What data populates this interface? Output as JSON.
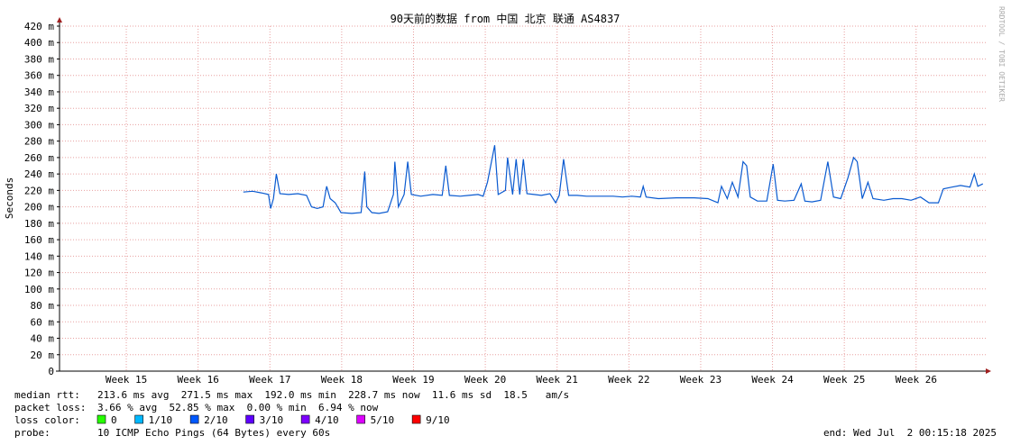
{
  "chart_data": {
    "type": "line",
    "title": "90天前的数据 from 中国 北京 联通 AS4837",
    "y_label": "Seconds",
    "watermark": "RRDTOOL / TOBI OETIKER",
    "xlim": [
      14.07,
      26.97
    ],
    "xticks": [
      {
        "value": 15,
        "label": "Week 15"
      },
      {
        "value": 16,
        "label": "Week 16"
      },
      {
        "value": 17,
        "label": "Week 17"
      },
      {
        "value": 18,
        "label": "Week 18"
      },
      {
        "value": 19,
        "label": "Week 19"
      },
      {
        "value": 20,
        "label": "Week 20"
      },
      {
        "value": 21,
        "label": "Week 21"
      },
      {
        "value": 22,
        "label": "Week 22"
      },
      {
        "value": 23,
        "label": "Week 23"
      },
      {
        "value": 24,
        "label": "Week 24"
      },
      {
        "value": 25,
        "label": "Week 25"
      },
      {
        "value": 26,
        "label": "Week 26"
      }
    ],
    "ylim": [
      0,
      0.42
    ],
    "yticks": [
      0,
      {
        "value": 0.02,
        "label": "20 m"
      },
      {
        "value": 0.04,
        "label": "40 m"
      },
      {
        "value": 0.06,
        "label": "60 m"
      },
      {
        "value": 0.08,
        "label": "80 m"
      },
      {
        "value": 0.1,
        "label": "100 m"
      },
      {
        "value": 0.12,
        "label": "120 m"
      },
      {
        "value": 0.14,
        "label": "140 m"
      },
      {
        "value": 0.16,
        "label": "160 m"
      },
      {
        "value": 0.18,
        "label": "180 m"
      },
      {
        "value": 0.2,
        "label": "200 m"
      },
      {
        "value": 0.22,
        "label": "220 m"
      },
      {
        "value": 0.24,
        "label": "240 m"
      },
      {
        "value": 0.26,
        "label": "260 m"
      },
      {
        "value": 0.28,
        "label": "280 m"
      },
      {
        "value": 0.3,
        "label": "300 m"
      },
      {
        "value": 0.32,
        "label": "320 m"
      },
      {
        "value": 0.34,
        "label": "340 m"
      },
      {
        "value": 0.36,
        "label": "360 m"
      },
      {
        "value": 0.38,
        "label": "380 m"
      },
      {
        "value": 0.4,
        "label": "400 m"
      },
      {
        "value": 0.42,
        "label": "420 m"
      }
    ],
    "grid": true,
    "x": [
      16.63,
      16.76,
      16.88,
      16.98,
      17.01,
      17.05,
      17.09,
      17.14,
      17.26,
      17.39,
      17.51,
      17.58,
      17.66,
      17.74,
      17.79,
      17.84,
      17.91,
      17.99,
      18.14,
      18.27,
      18.32,
      18.35,
      18.42,
      18.52,
      18.64,
      18.72,
      18.74,
      18.79,
      18.87,
      18.92,
      18.97,
      19.1,
      19.27,
      19.4,
      19.45,
      19.5,
      19.65,
      19.77,
      19.9,
      19.97,
      20.03,
      20.13,
      20.18,
      20.28,
      20.31,
      20.38,
      20.43,
      20.48,
      20.53,
      20.58,
      20.68,
      20.78,
      20.9,
      20.98,
      21.03,
      21.09,
      21.16,
      21.28,
      21.41,
      21.53,
      21.66,
      21.78,
      21.91,
      22.04,
      22.16,
      22.2,
      22.24,
      22.41,
      22.66,
      22.91,
      23.1,
      23.24,
      23.29,
      23.37,
      23.44,
      23.52,
      23.59,
      23.64,
      23.69,
      23.79,
      23.92,
      24.01,
      24.07,
      24.17,
      24.3,
      24.4,
      24.45,
      24.55,
      24.67,
      24.77,
      24.85,
      24.95,
      25.05,
      25.13,
      25.18,
      25.25,
      25.33,
      25.4,
      25.55,
      25.68,
      25.8,
      25.93,
      26.06,
      26.18,
      26.31,
      26.38,
      26.5,
      26.62,
      26.75,
      26.81,
      26.86,
      26.93
    ],
    "series": [
      {
        "name": "median rtt",
        "color": "#0a5ad0",
        "values": [
          0.218,
          0.219,
          0.217,
          0.215,
          0.198,
          0.21,
          0.24,
          0.216,
          0.215,
          0.216,
          0.214,
          0.2,
          0.198,
          0.2,
          0.225,
          0.21,
          0.205,
          0.193,
          0.192,
          0.193,
          0.243,
          0.2,
          0.193,
          0.192,
          0.194,
          0.215,
          0.255,
          0.2,
          0.215,
          0.255,
          0.215,
          0.213,
          0.215,
          0.214,
          0.25,
          0.214,
          0.213,
          0.214,
          0.215,
          0.213,
          0.23,
          0.275,
          0.215,
          0.22,
          0.26,
          0.215,
          0.258,
          0.215,
          0.258,
          0.216,
          0.215,
          0.214,
          0.216,
          0.205,
          0.214,
          0.258,
          0.214,
          0.214,
          0.213,
          0.213,
          0.213,
          0.213,
          0.212,
          0.213,
          0.212,
          0.225,
          0.212,
          0.21,
          0.211,
          0.211,
          0.21,
          0.205,
          0.225,
          0.21,
          0.23,
          0.212,
          0.255,
          0.25,
          0.212,
          0.207,
          0.207,
          0.252,
          0.208,
          0.207,
          0.208,
          0.228,
          0.207,
          0.206,
          0.208,
          0.255,
          0.212,
          0.21,
          0.235,
          0.26,
          0.255,
          0.21,
          0.23,
          0.21,
          0.208,
          0.21,
          0.21,
          0.208,
          0.212,
          0.205,
          0.205,
          0.222,
          0.224,
          0.226,
          0.224,
          0.24,
          0.225,
          0.228
        ]
      }
    ]
  },
  "footer": {
    "median_rtt": {
      "label": "median rtt:",
      "text": "213.6 ms avg  271.5 ms max  192.0 ms min  228.7 ms now  11.6 ms sd  18.5   am/s"
    },
    "packet_loss": {
      "label": "packet loss:",
      "text": "3.66 % avg  52.85 % max  0.00 % min  6.94 % now"
    },
    "loss_color": {
      "label": "loss color:",
      "items": [
        {
          "name": "0",
          "color": "#26ff00"
        },
        {
          "name": "1/10",
          "color": "#00b8ff"
        },
        {
          "name": "2/10",
          "color": "#0059ff"
        },
        {
          "name": "3/10",
          "color": "#5e00ff"
        },
        {
          "name": "4/10",
          "color": "#7e00ff"
        },
        {
          "name": "5/10",
          "color": "#dd00ff"
        },
        {
          "name": "9/10",
          "color": "#ff0000"
        }
      ]
    },
    "probe": {
      "label": "probe:",
      "text": "10 ICMP Echo Pings (64 Bytes) every 60s"
    },
    "end": "end: Wed Jul  2 00:15:18 2025"
  }
}
